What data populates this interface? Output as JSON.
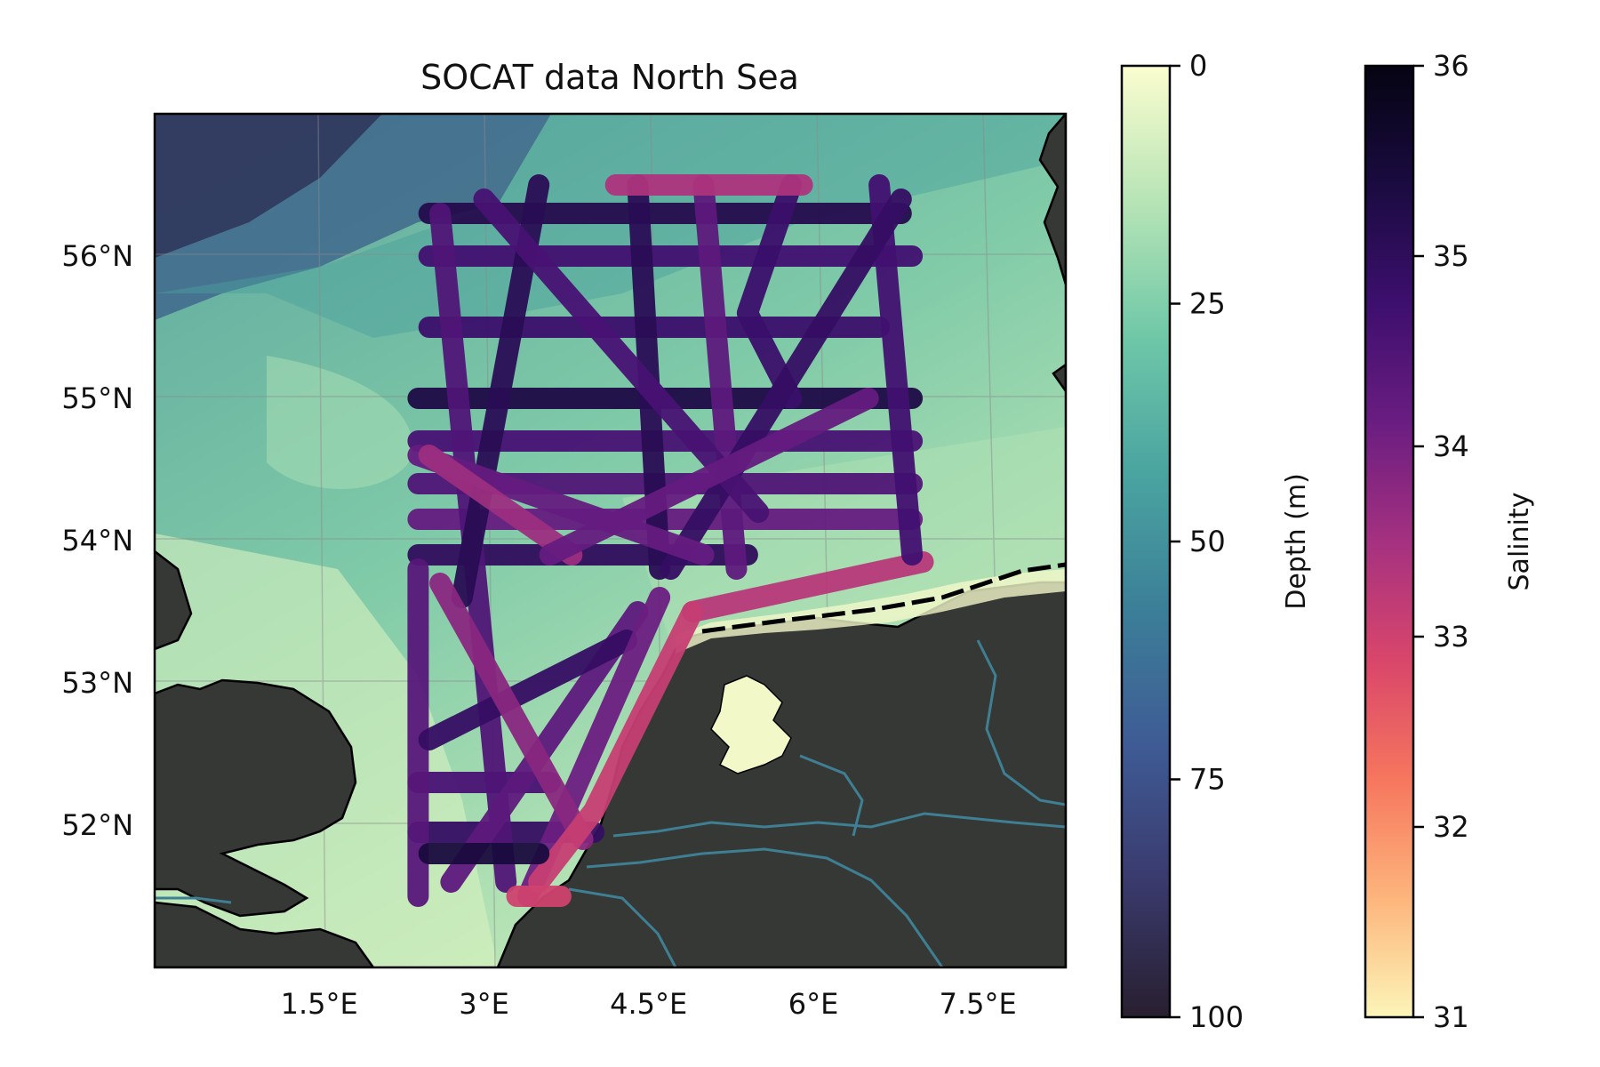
{
  "map": {
    "title": "SOCAT data North Sea",
    "lon_range": [
      0.0,
      8.3
    ],
    "lat_range": [
      51.0,
      57.0
    ],
    "lat_tick_labels": [
      {
        "value": 52,
        "label": "52°N"
      },
      {
        "value": 53,
        "label": "53°N"
      },
      {
        "value": 54,
        "label": "54°N"
      },
      {
        "value": 55,
        "label": "55°N"
      },
      {
        "value": 56,
        "label": "56°N"
      }
    ],
    "lon_tick_labels": [
      {
        "value": 1.5,
        "label": "1.5°E"
      },
      {
        "value": 3.0,
        "label": "3°E"
      },
      {
        "value": 4.5,
        "label": "4.5°E"
      },
      {
        "value": 6.0,
        "label": "6°E"
      },
      {
        "value": 7.5,
        "label": "7.5°E"
      }
    ],
    "land_color": "#353835",
    "coastline_color": "#000000",
    "river_color": "#3f7f93",
    "gridlines": true
  },
  "depth_colorbar": {
    "label": "Depth (m)",
    "min": 0,
    "max": 100,
    "ticks": [
      {
        "value": 0,
        "label": "0"
      },
      {
        "value": 25,
        "label": "25"
      },
      {
        "value": 50,
        "label": "50"
      },
      {
        "value": 75,
        "label": "75"
      },
      {
        "value": 100,
        "label": "100"
      }
    ],
    "colormap": "deep",
    "stops": [
      "#fbfdcf",
      "#b7e4b6",
      "#6fc7a8",
      "#4aa4a0",
      "#3c7f98",
      "#3f5b95",
      "#3a3a6d",
      "#281f2f"
    ]
  },
  "salinity_colorbar": {
    "label": "Salinity",
    "min": 31,
    "max": 36,
    "ticks": [
      {
        "value": 31,
        "label": "31"
      },
      {
        "value": 32,
        "label": "32"
      },
      {
        "value": 33,
        "label": "33"
      },
      {
        "value": 34,
        "label": "34"
      },
      {
        "value": 35,
        "label": "35"
      },
      {
        "value": 36,
        "label": "36"
      }
    ],
    "colormap": "magma",
    "stops": [
      "#fcf5b8",
      "#fdb57c",
      "#f6765e",
      "#d9466b",
      "#a53180",
      "#6a1d81",
      "#3d0f6e",
      "#1a0b40",
      "#050412"
    ]
  },
  "chart_data": {
    "type": "scatter",
    "title": "SOCAT data North Sea",
    "xlabel": "",
    "ylabel": "",
    "color_variable": "Salinity",
    "tracks": [
      {
        "salinity": 35.2,
        "points": [
          [
            2.5,
            56.3
          ],
          [
            6.8,
            56.3
          ]
        ]
      },
      {
        "salinity": 34.7,
        "points": [
          [
            2.5,
            56.0
          ],
          [
            6.9,
            56.0
          ]
        ]
      },
      {
        "salinity": 34.8,
        "points": [
          [
            2.5,
            55.5
          ],
          [
            6.6,
            55.5
          ]
        ]
      },
      {
        "salinity": 35.3,
        "points": [
          [
            2.4,
            55.0
          ],
          [
            6.9,
            55.0
          ]
        ]
      },
      {
        "salinity": 34.6,
        "points": [
          [
            2.4,
            54.7
          ],
          [
            6.9,
            54.7
          ]
        ]
      },
      {
        "salinity": 34.5,
        "points": [
          [
            2.4,
            54.4
          ],
          [
            6.9,
            54.4
          ]
        ]
      },
      {
        "salinity": 34.2,
        "points": [
          [
            2.4,
            54.15
          ],
          [
            6.9,
            54.15
          ]
        ]
      },
      {
        "salinity": 35.0,
        "points": [
          [
            2.4,
            53.9
          ],
          [
            5.4,
            53.9
          ]
        ]
      },
      {
        "salinity": 33.3,
        "points": [
          [
            4.9,
            53.5
          ],
          [
            7.0,
            53.85
          ]
        ]
      },
      {
        "salinity": 34.9,
        "points": [
          [
            2.4,
            51.95
          ],
          [
            4.0,
            51.95
          ]
        ]
      },
      {
        "salinity": 34.6,
        "points": [
          [
            2.4,
            52.3
          ],
          [
            3.6,
            52.3
          ]
        ]
      },
      {
        "salinity": 35.1,
        "points": [
          [
            4.4,
            56.5
          ],
          [
            4.6,
            53.8
          ]
        ]
      },
      {
        "salinity": 34.3,
        "points": [
          [
            5.0,
            56.5
          ],
          [
            5.3,
            53.8
          ]
        ]
      },
      {
        "salinity": 34.8,
        "points": [
          [
            5.8,
            56.5
          ],
          [
            5.4,
            55.6
          ],
          [
            5.8,
            55.0
          ]
        ]
      },
      {
        "salinity": 33.4,
        "points": [
          [
            4.2,
            56.5
          ],
          [
            5.9,
            56.5
          ]
        ]
      },
      {
        "salinity": 34.4,
        "points": [
          [
            2.4,
            51.5
          ],
          [
            2.4,
            53.8
          ]
        ]
      },
      {
        "salinity": 34.7,
        "points": [
          [
            6.6,
            56.5
          ],
          [
            6.9,
            53.9
          ]
        ]
      },
      {
        "salinity": 34.5,
        "points": [
          [
            2.6,
            56.3
          ],
          [
            3.2,
            51.6
          ]
        ]
      },
      {
        "salinity": 35.1,
        "points": [
          [
            3.5,
            56.5
          ],
          [
            2.8,
            53.6
          ]
        ]
      },
      {
        "salinity": 34.9,
        "points": [
          [
            6.8,
            56.4
          ],
          [
            4.7,
            53.8
          ]
        ]
      },
      {
        "salinity": 34.6,
        "points": [
          [
            3.0,
            56.4
          ],
          [
            5.5,
            54.2
          ]
        ]
      },
      {
        "salinity": 34.3,
        "points": [
          [
            4.4,
            53.5
          ],
          [
            2.7,
            51.6
          ]
        ]
      },
      {
        "salinity": 34.9,
        "points": [
          [
            4.3,
            53.3
          ],
          [
            2.5,
            52.6
          ]
        ]
      },
      {
        "salinity": 34.1,
        "points": [
          [
            4.6,
            53.6
          ],
          [
            3.4,
            51.5
          ]
        ]
      },
      {
        "salinity": 33.8,
        "points": [
          [
            2.6,
            53.7
          ],
          [
            3.9,
            51.9
          ]
        ]
      },
      {
        "salinity": 33.1,
        "points": [
          [
            4.9,
            53.5
          ],
          [
            4.0,
            52.1
          ],
          [
            3.5,
            51.6
          ]
        ]
      },
      {
        "salinity": 34.2,
        "points": [
          [
            2.4,
            54.6
          ],
          [
            5.0,
            53.9
          ]
        ]
      },
      {
        "salinity": 33.6,
        "points": [
          [
            2.5,
            54.6
          ],
          [
            3.8,
            53.9
          ]
        ]
      },
      {
        "salinity": 34.2,
        "points": [
          [
            3.6,
            53.9
          ],
          [
            6.5,
            55.0
          ]
        ]
      },
      {
        "salinity": 33.0,
        "points": [
          [
            3.7,
            51.5
          ],
          [
            3.3,
            51.5
          ]
        ]
      },
      {
        "salinity": 35.4,
        "points": [
          [
            2.5,
            51.8
          ],
          [
            3.5,
            51.8
          ]
        ]
      }
    ]
  }
}
